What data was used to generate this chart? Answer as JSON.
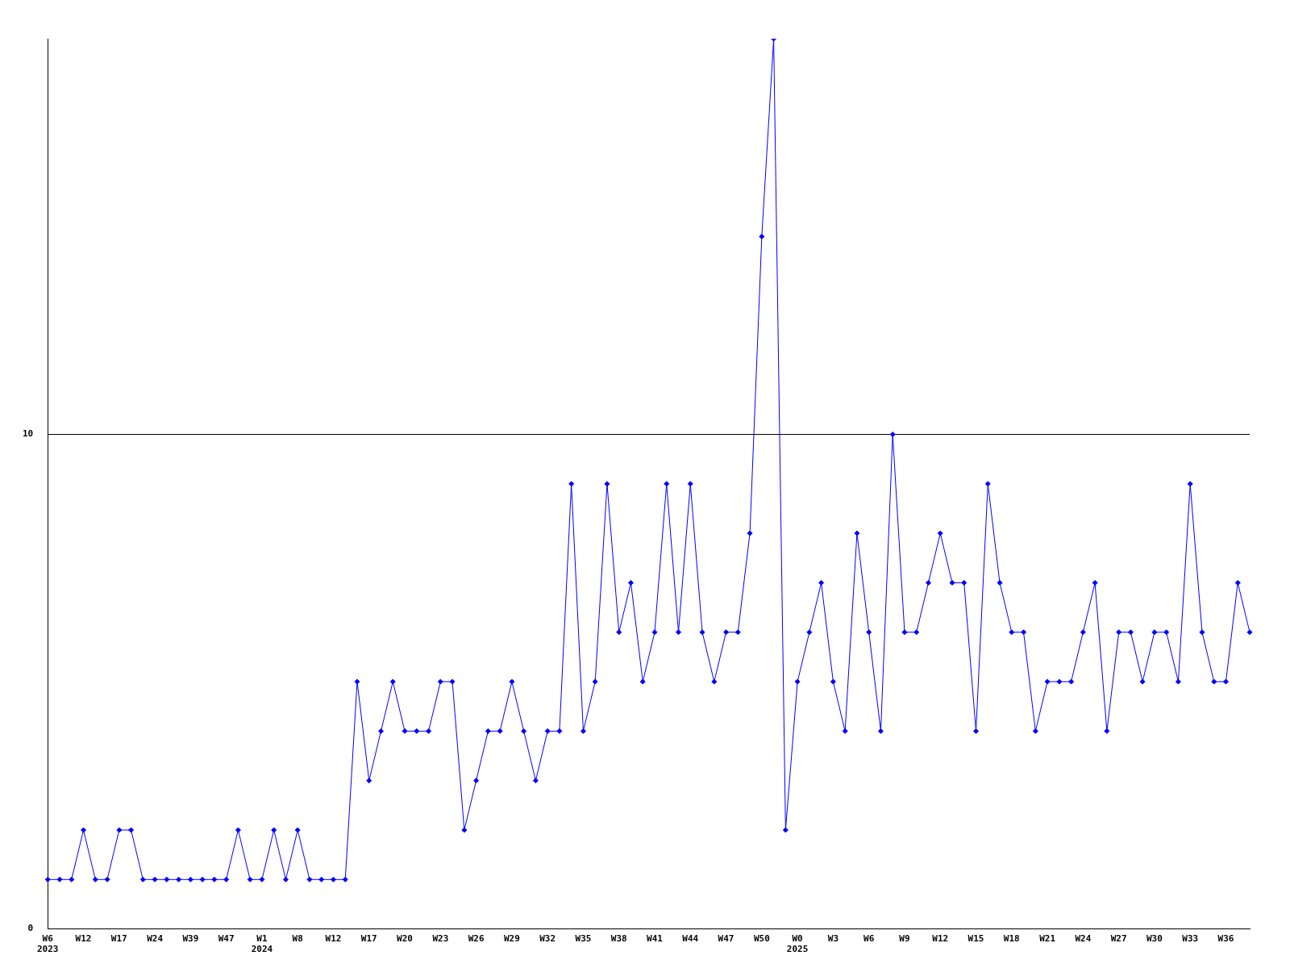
{
  "chart_data": {
    "type": "line",
    "categories": [
      "W6\n2023",
      null,
      null,
      "W12",
      null,
      null,
      "W17",
      null,
      null,
      "W24",
      null,
      null,
      "W39",
      null,
      null,
      "W47",
      null,
      null,
      "W1\n2024",
      null,
      null,
      "W8",
      null,
      null,
      "W12",
      null,
      null,
      "W17",
      null,
      null,
      "W20",
      null,
      null,
      "W23",
      null,
      null,
      "W26",
      null,
      null,
      "W29",
      null,
      null,
      "W32",
      null,
      null,
      "W35",
      null,
      null,
      "W38",
      null,
      null,
      "W41",
      null,
      null,
      "W44",
      null,
      null,
      "W47",
      null,
      null,
      "W50",
      null,
      null,
      "W0\n2025",
      null,
      null,
      "W3",
      null,
      null,
      "W6",
      null,
      null,
      "W9",
      null,
      null,
      "W12",
      null,
      null,
      "W15",
      null,
      null,
      "W18",
      null,
      null,
      "W21",
      null,
      null,
      "W24",
      null,
      null,
      "W27",
      null,
      null,
      "W30",
      null,
      null,
      "W33",
      null,
      null,
      "W36",
      null,
      null
    ],
    "series": [
      {
        "color": "#0000ff",
        "values": [
          1,
          1,
          1,
          2,
          1,
          1,
          2,
          2,
          1,
          1,
          1,
          1,
          1,
          1,
          1,
          1,
          2,
          1,
          1,
          2,
          1,
          2,
          1,
          1,
          1,
          1,
          5,
          3,
          4,
          5,
          4,
          4,
          4,
          5,
          5,
          2,
          3,
          4,
          4,
          5,
          4,
          3,
          4,
          4,
          9,
          4,
          5,
          9,
          6,
          7,
          5,
          6,
          9,
          6,
          9,
          6,
          5,
          6,
          6,
          8,
          14,
          18,
          2,
          5,
          6,
          7,
          5,
          4,
          8,
          6,
          4,
          10,
          6,
          6,
          7,
          8,
          7,
          7,
          4,
          9,
          7,
          6,
          6,
          4,
          5,
          5,
          5,
          6,
          7,
          4,
          6,
          6,
          5,
          6,
          6,
          5,
          9,
          6,
          5,
          5,
          7,
          6
        ]
      }
    ],
    "ylim": [
      0,
      18
    ],
    "yticks": [
      0,
      10
    ],
    "grid": "y",
    "marker": "diamond",
    "line_style": "solid"
  }
}
